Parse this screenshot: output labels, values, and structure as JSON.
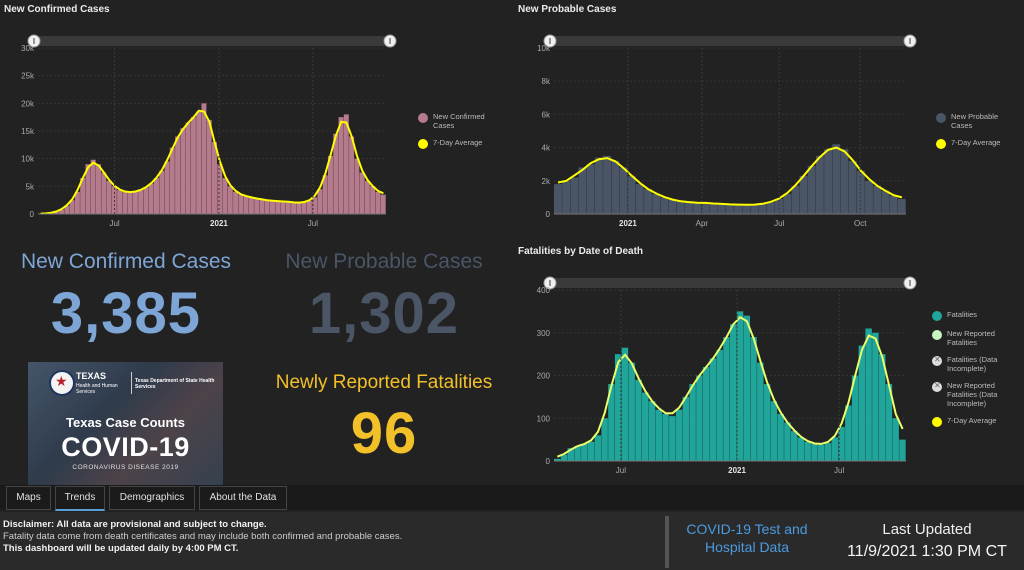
{
  "charts": {
    "confirmed": {
      "title": "New Confirmed Cases",
      "legend": [
        {
          "label": "New Confirmed Cases",
          "color": "#b57a8c"
        },
        {
          "label": "7-Day Average",
          "color": "#ffff00"
        }
      ]
    },
    "probable": {
      "title": "New Probable Cases",
      "legend": [
        {
          "label": "New Probable Cases",
          "color": "#4a5566"
        },
        {
          "label": "7-Day Average",
          "color": "#ffff00"
        }
      ]
    },
    "fatalities": {
      "title": "Fatalities by Date of Death",
      "legend": [
        {
          "label": "Fatalities",
          "color": "#1fa59a"
        },
        {
          "label": "New Reported Fatalities",
          "color": "#c8f5c0"
        },
        {
          "label": "Fatalities (Data Incomplete)",
          "icon": "x-icon"
        },
        {
          "label": "New Reported Fatalities (Data Incomplete)",
          "icon": "x-icon"
        },
        {
          "label": "7-Day Average",
          "color": "#ffff00"
        }
      ]
    }
  },
  "chart_data": [
    {
      "type": "bar",
      "title": "New Confirmed Cases",
      "x_ticks": [
        "Jul",
        "2021",
        "Jul"
      ],
      "y_ticks": [
        "0",
        "5k",
        "10k",
        "15k",
        "20k",
        "25k",
        "30k"
      ],
      "ylim": [
        0,
        30000
      ],
      "series": [
        {
          "name": "New Confirmed Cases",
          "color": "#b57a8c",
          "values": [
            50,
            100,
            200,
            400,
            800,
            1500,
            2500,
            4000,
            6500,
            9000,
            9800,
            9000,
            7500,
            6000,
            5000,
            4300,
            4000,
            3900,
            4000,
            4300,
            4800,
            5500,
            6500,
            7800,
            9500,
            12000,
            14000,
            15500,
            16500,
            17500,
            18500,
            20000,
            17000,
            13000,
            9000,
            6500,
            5000,
            4000,
            3500,
            3200,
            3000,
            2800,
            2600,
            2500,
            2400,
            2300,
            2300,
            2200,
            2100,
            2000,
            2100,
            2400,
            3000,
            4500,
            7000,
            10500,
            14500,
            17500,
            18000,
            14000,
            10000,
            7500,
            6000,
            5000,
            4000,
            3500
          ]
        }
      ]
    },
    {
      "type": "bar",
      "title": "New Probable Cases",
      "x_ticks": [
        "2021",
        "Apr",
        "Jul",
        "Oct"
      ],
      "y_ticks": [
        "0",
        "2k",
        "4k",
        "6k",
        "8k",
        "10k"
      ],
      "ylim": [
        0,
        10000
      ],
      "series": [
        {
          "name": "New Probable Cases",
          "color": "#4a5566",
          "values": [
            1800,
            2000,
            2200,
            2800,
            3000,
            3400,
            3500,
            3200,
            2800,
            2300,
            1800,
            1500,
            1200,
            1000,
            850,
            750,
            700,
            700,
            650,
            650,
            600,
            580,
            560,
            550,
            550,
            600,
            700,
            900,
            1200,
            1700,
            2300,
            2900,
            3500,
            3900,
            4200,
            3900,
            3200,
            2600,
            2000,
            1700,
            1400,
            1100,
            900
          ]
        }
      ]
    },
    {
      "type": "bar",
      "title": "Fatalities by Date of Death",
      "x_ticks": [
        "Jul",
        "2021",
        "Jul"
      ],
      "y_ticks": [
        "0",
        "100",
        "200",
        "300",
        "400"
      ],
      "ylim": [
        0,
        400
      ],
      "series": [
        {
          "name": "Fatalities",
          "color": "#1fa59a",
          "values": [
            5,
            15,
            30,
            35,
            40,
            45,
            60,
            100,
            180,
            250,
            265,
            230,
            190,
            160,
            140,
            120,
            110,
            105,
            120,
            150,
            180,
            200,
            220,
            240,
            260,
            290,
            320,
            350,
            340,
            290,
            230,
            180,
            140,
            110,
            90,
            70,
            55,
            45,
            40,
            38,
            42,
            55,
            80,
            130,
            200,
            270,
            310,
            300,
            250,
            180,
            100,
            50
          ]
        }
      ]
    }
  ],
  "summary": {
    "confirmed_label": "New Confirmed Cases",
    "confirmed_value": "3,385",
    "probable_label": "New Probable Cases",
    "probable_value": "1,302",
    "fatalities_label": "Newly Reported Fatalities",
    "fatalities_value": "96"
  },
  "banner": {
    "org1": "TEXAS",
    "org1_sub": "Health and Human Services",
    "org2": "Texas Department of State Health Services",
    "line1": "Texas Case Counts",
    "line2": "COVID-19",
    "line3": "CORONAVIRUS DISEASE 2019"
  },
  "tabs": [
    {
      "label": "Maps"
    },
    {
      "label": "Trends"
    },
    {
      "label": "Demographics"
    },
    {
      "label": "About the Data"
    }
  ],
  "footer": {
    "disclaimer_bold": "Disclaimer: All data are provisional and subject to change.",
    "disclaimer_text": "Fatality data come from death certificates and may include both confirmed and probable cases.",
    "disclaimer_update": "This dashboard will be updated daily by 4:00 PM CT.",
    "hospital_link": "COVID-19 Test and Hospital Data",
    "last_updated_label": "Last Updated",
    "last_updated_value": "11/9/2021 1:30 PM CT"
  }
}
